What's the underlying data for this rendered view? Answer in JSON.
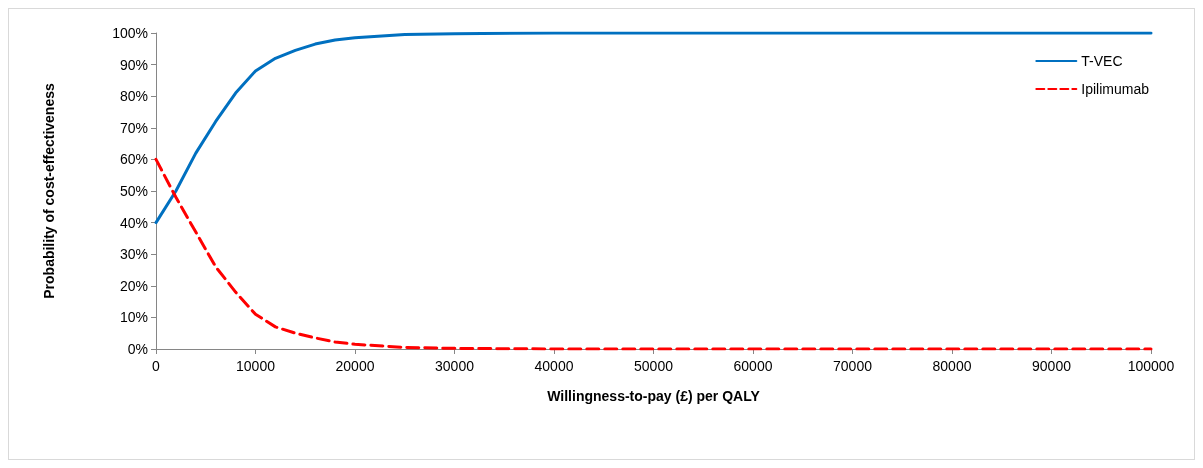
{
  "chart_data": {
    "type": "line",
    "xlabel": "Willingness-to-pay (£) per QALY",
    "ylabel": "Probability of cost-effectiveness",
    "x": [
      0,
      2000,
      4000,
      6000,
      8000,
      10000,
      12000,
      14000,
      16000,
      18000,
      20000,
      25000,
      30000,
      40000,
      100000
    ],
    "series": [
      {
        "name": "T-VEC",
        "color": "#0070c0",
        "line_style": "solid",
        "values": [
          40,
          50,
          62,
          72,
          81,
          88,
          92,
          94.5,
          96.5,
          97.8,
          98.5,
          99.5,
          99.8,
          100,
          100
        ]
      },
      {
        "name": "Ipilimumab",
        "color": "#ff0000",
        "line_style": "dashed",
        "values": [
          60,
          48,
          37,
          26,
          18,
          11,
          7,
          5,
          3.5,
          2.2,
          1.5,
          0.5,
          0.2,
          0,
          0
        ]
      }
    ],
    "xlim": [
      0,
      100000
    ],
    "xticks": [
      0,
      10000,
      20000,
      30000,
      40000,
      50000,
      60000,
      70000,
      80000,
      90000,
      100000
    ],
    "ylim": [
      0,
      100
    ],
    "yticks": [
      {
        "value": 0,
        "label": "0%"
      },
      {
        "value": 10,
        "label": "10%"
      },
      {
        "value": 20,
        "label": "20%"
      },
      {
        "value": 30,
        "label": "30%"
      },
      {
        "value": 40,
        "label": "40%"
      },
      {
        "value": 50,
        "label": "50%"
      },
      {
        "value": 60,
        "label": "60%"
      },
      {
        "value": 70,
        "label": "70%"
      },
      {
        "value": 80,
        "label": "80%"
      },
      {
        "value": 90,
        "label": "90%"
      },
      {
        "value": 100,
        "label": "100%"
      }
    ],
    "grid": false,
    "legend": "top right",
    "marker": "none"
  }
}
